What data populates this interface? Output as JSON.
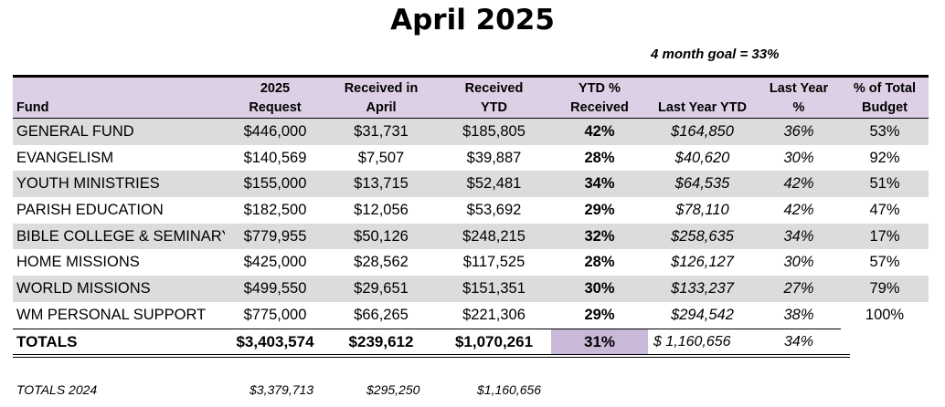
{
  "title": "April 2025",
  "goal": "4 month goal =  33%",
  "headers": {
    "fund": "Fund",
    "request_l1": "2025",
    "request_l2": "Request",
    "received_l1": "Received in",
    "received_l2": "April",
    "ytd_l1": "Received",
    "ytd_l2": "YTD",
    "ytdpct_l1": "YTD %",
    "ytdpct_l2": "Received",
    "lastyear": "Last Year YTD",
    "lypct_l1": "Last Year",
    "lypct_l2": "%",
    "budget_l1": "% of Total",
    "budget_l2": "Budget"
  },
  "rows": [
    {
      "fund": "GENERAL FUND",
      "request": "$446,000",
      "received": "$31,731",
      "ytd": "$185,805",
      "ytd_pct": "42%",
      "last_year": "$164,850",
      "ly_pct": "36%",
      "budget_pct": "53%"
    },
    {
      "fund": "EVANGELISM",
      "request": "$140,569",
      "received": "$7,507",
      "ytd": "$39,887",
      "ytd_pct": "28%",
      "last_year": "$40,620",
      "ly_pct": "30%",
      "budget_pct": "92%"
    },
    {
      "fund": "YOUTH MINISTRIES",
      "request": "$155,000",
      "received": "$13,715",
      "ytd": "$52,481",
      "ytd_pct": "34%",
      "last_year": "$64,535",
      "ly_pct": "42%",
      "budget_pct": "51%"
    },
    {
      "fund": "PARISH EDUCATION",
      "request": "$182,500",
      "received": "$12,056",
      "ytd": "$53,692",
      "ytd_pct": "29%",
      "last_year": "$78,110",
      "ly_pct": "42%",
      "budget_pct": "47%"
    },
    {
      "fund": "BIBLE COLLEGE & SEMINARY",
      "request": "$779,955",
      "received": "$50,126",
      "ytd": "$248,215",
      "ytd_pct": "32%",
      "last_year": "$258,635",
      "ly_pct": "34%",
      "budget_pct": "17%"
    },
    {
      "fund": "HOME MISSIONS",
      "request": "$425,000",
      "received": "$28,562",
      "ytd": "$117,525",
      "ytd_pct": "28%",
      "last_year": "$126,127",
      "ly_pct": "30%",
      "budget_pct": "57%"
    },
    {
      "fund": "WORLD MISSIONS",
      "request": "$499,550",
      "received": "$29,651",
      "ytd": "$151,351",
      "ytd_pct": "30%",
      "last_year": "$133,237",
      "ly_pct": "27%",
      "budget_pct": "79%"
    },
    {
      "fund": "WM PERSONAL SUPPORT",
      "request": "$775,000",
      "received": "$66,265",
      "ytd": "$221,306",
      "ytd_pct": "29%",
      "last_year": "$294,542",
      "ly_pct": "38%",
      "budget_pct": "100%"
    }
  ],
  "totals": {
    "label": "TOTALS",
    "request": "$3,403,574",
    "received": "$239,612",
    "ytd": "$1,070,261",
    "ytd_pct": "31%",
    "last_year": "$   1,160,656",
    "ly_pct": "34%"
  },
  "totals_2024": {
    "label": "TOTALS 2024",
    "request": "$3,379,713",
    "received": "$295,250",
    "ytd": "$1,160,656"
  }
}
